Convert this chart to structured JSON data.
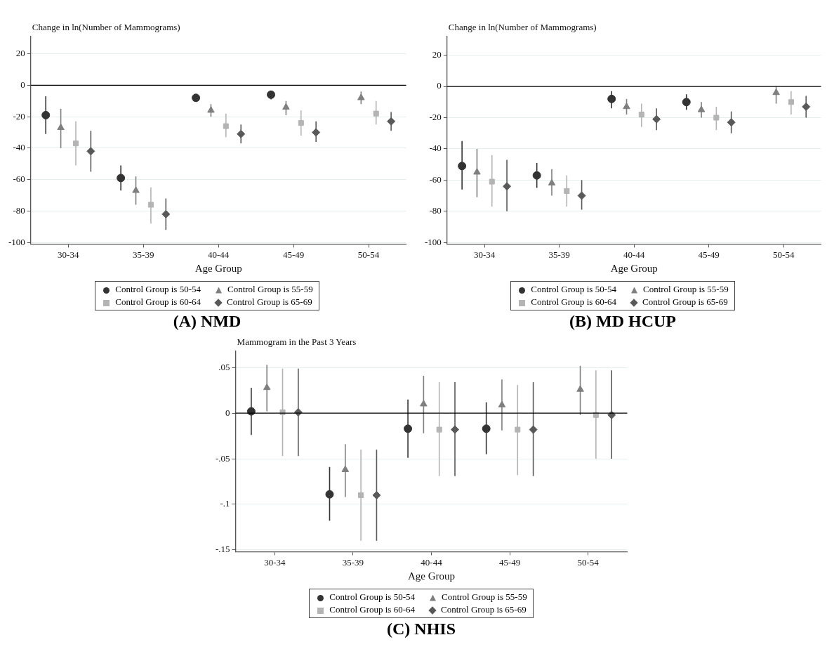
{
  "chart_data": [
    {
      "type": "scatter",
      "title": "(A)  NMD",
      "ylabel": "Change in ln(Number of Mammograms)",
      "xlabel": "Age Group",
      "categories": [
        "30-34",
        "35-39",
        "40-44",
        "45-49",
        "50-54"
      ],
      "ylim": [
        -101,
        31
      ],
      "yticks": [
        -100,
        -80,
        -60,
        -40,
        -20,
        0,
        20
      ],
      "grid": "y",
      "legend": "bottom",
      "ref_lines": [
        {
          "axis": "y",
          "value": 0,
          "color": "#000000"
        }
      ],
      "series": [
        {
          "name": "Control Group is 50-54",
          "color": "#333333",
          "marker": "circle",
          "values": [
            -19,
            -59,
            -8,
            -6,
            null
          ],
          "errors": [
            [
              -31,
              -7
            ],
            [
              -67,
              -51
            ],
            [
              -10,
              -6
            ],
            [
              -9,
              -4
            ],
            null
          ]
        },
        {
          "name": "Control Group is 55-59",
          "color": "#7f7f7f",
          "marker": "triangle",
          "values": [
            -27,
            -67,
            -16,
            -14,
            -8
          ],
          "errors": [
            [
              -40,
              -15
            ],
            [
              -76,
              -58
            ],
            [
              -20,
              -12
            ],
            [
              -19,
              -10
            ],
            [
              -12,
              -4
            ]
          ]
        },
        {
          "name": "Control Group is 60-64",
          "color": "#b4b4b4",
          "marker": "square",
          "values": [
            -37,
            -76,
            -26,
            -24,
            -18
          ],
          "errors": [
            [
              -51,
              -23
            ],
            [
              -88,
              -65
            ],
            [
              -33,
              -18
            ],
            [
              -32,
              -16
            ],
            [
              -25,
              -10
            ]
          ]
        },
        {
          "name": "Control Group is 65-69",
          "color": "#595959",
          "marker": "diamond",
          "values": [
            -42,
            -82,
            -31,
            -30,
            -23
          ],
          "errors": [
            [
              -55,
              -29
            ],
            [
              -92,
              -72
            ],
            [
              -37,
              -25
            ],
            [
              -36,
              -23
            ],
            [
              -29,
              -17
            ]
          ]
        }
      ]
    },
    {
      "type": "scatter",
      "title": "(B) MD HCUP",
      "ylabel": "Change in ln(Number of Mammograms)",
      "xlabel": "Age Group",
      "categories": [
        "30-34",
        "35-39",
        "40-44",
        "45-49",
        "50-54"
      ],
      "ylim": [
        -101,
        32
      ],
      "yticks": [
        -100,
        -80,
        -60,
        -40,
        -20,
        0,
        20
      ],
      "grid": "y",
      "legend": "bottom",
      "ref_lines": [
        {
          "axis": "y",
          "value": 0,
          "color": "#000000"
        }
      ],
      "series": [
        {
          "name": "Control Group is 50-54",
          "color": "#333333",
          "marker": "circle",
          "values": [
            -51,
            -57,
            -8,
            -10,
            null
          ],
          "errors": [
            [
              -66,
              -35
            ],
            [
              -65,
              -49
            ],
            [
              -14,
              -3
            ],
            [
              -15,
              -5
            ],
            null
          ]
        },
        {
          "name": "Control Group is 55-59",
          "color": "#7f7f7f",
          "marker": "triangle",
          "values": [
            -55,
            -62,
            -13,
            -15,
            -4
          ],
          "errors": [
            [
              -71,
              -40
            ],
            [
              -70,
              -53
            ],
            [
              -18,
              -8
            ],
            [
              -20,
              -10
            ],
            [
              -11,
              0
            ]
          ]
        },
        {
          "name": "Control Group is 60-64",
          "color": "#b4b4b4",
          "marker": "square",
          "values": [
            -61,
            -67,
            -18,
            -20,
            -10
          ],
          "errors": [
            [
              -77,
              -44
            ],
            [
              -77,
              -57
            ],
            [
              -26,
              -11
            ],
            [
              -28,
              -13
            ],
            [
              -18,
              -3
            ]
          ]
        },
        {
          "name": "Control Group is 65-69",
          "color": "#595959",
          "marker": "diamond",
          "values": [
            -64,
            -70,
            -21,
            -23,
            -13
          ],
          "errors": [
            [
              -80,
              -47
            ],
            [
              -79,
              -60
            ],
            [
              -28,
              -14
            ],
            [
              -30,
              -16
            ],
            [
              -20,
              -6
            ]
          ]
        }
      ]
    },
    {
      "type": "scatter",
      "title": "(C) NHIS",
      "ylabel": "Mammogram in the Past 3 Years",
      "xlabel": "Age Group",
      "categories": [
        "30-34",
        "35-39",
        "40-44",
        "45-49",
        "50-54"
      ],
      "ylim": [
        -0.152,
        0.068
      ],
      "yticks": [
        {
          "value": -0.15,
          "label": "-.15"
        },
        {
          "value": -0.1,
          "label": "-.1"
        },
        {
          "value": -0.05,
          "label": "-.05"
        },
        0,
        {
          "value": 0.05,
          "label": ".05"
        }
      ],
      "grid": "y",
      "legend": "bottom",
      "ref_lines": [
        {
          "axis": "y",
          "value": 0,
          "color": "#000000"
        }
      ],
      "series": [
        {
          "name": "Control Group is 50-54",
          "color": "#333333",
          "marker": "circle",
          "values": [
            0.002,
            -0.089,
            -0.017,
            -0.017,
            null
          ],
          "errors": [
            [
              -0.024,
              0.028
            ],
            [
              -0.118,
              -0.059
            ],
            [
              -0.049,
              0.015
            ],
            [
              -0.045,
              0.012
            ],
            null
          ]
        },
        {
          "name": "Control Group is 55-59",
          "color": "#7f7f7f",
          "marker": "triangle",
          "values": [
            0.028,
            -0.062,
            0.01,
            0.009,
            0.026
          ],
          "errors": [
            [
              0.002,
              0.053
            ],
            [
              -0.092,
              -0.034
            ],
            [
              -0.022,
              0.041
            ],
            [
              -0.019,
              0.037
            ],
            [
              -0.002,
              0.052
            ]
          ]
        },
        {
          "name": "Control Group is 60-64",
          "color": "#b4b4b4",
          "marker": "square",
          "values": [
            0.001,
            -0.09,
            -0.018,
            -0.018,
            -0.002
          ],
          "errors": [
            [
              -0.047,
              0.049
            ],
            [
              -0.14,
              -0.04
            ],
            [
              -0.069,
              0.034
            ],
            [
              -0.068,
              0.031
            ],
            [
              -0.05,
              0.047
            ]
          ]
        },
        {
          "name": "Control Group is 65-69",
          "color": "#595959",
          "marker": "diamond",
          "values": [
            0.001,
            -0.09,
            -0.018,
            -0.018,
            -0.002
          ],
          "errors": [
            [
              -0.047,
              0.049
            ],
            [
              -0.14,
              -0.04
            ],
            [
              -0.069,
              0.034
            ],
            [
              -0.069,
              0.034
            ],
            [
              -0.05,
              0.047
            ]
          ]
        }
      ]
    }
  ]
}
